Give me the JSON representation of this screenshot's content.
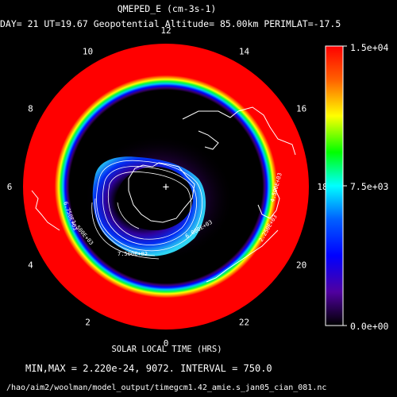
{
  "chart_data": {
    "type": "heatmap",
    "projection": "polar-stereographic",
    "title": "QMEPED_E (cm-3s-1)",
    "subtitle": "DAY= 21 UT=19.67 Geopotential Altitude= 85.00km PERIMLAT=-17.5",
    "xlabel": "SOLAR LOCAL TIME (HRS)",
    "local_time_ticks": [
      {
        "label": "0",
        "lt": 0
      },
      {
        "label": "2",
        "lt": 2
      },
      {
        "label": "4",
        "lt": 4
      },
      {
        "label": "6",
        "lt": 6
      },
      {
        "label": "8",
        "lt": 8
      },
      {
        "label": "10",
        "lt": 10
      },
      {
        "label": "12",
        "lt": 12
      },
      {
        "label": "14",
        "lt": 14
      },
      {
        "label": "16",
        "lt": 16
      },
      {
        "label": "18",
        "lt": 18
      },
      {
        "label": "20",
        "lt": 20
      },
      {
        "label": "22",
        "lt": 22
      }
    ],
    "colorbar": {
      "min": 0.0,
      "max": 15000,
      "tick_labels": [
        "1.5e+04",
        "7.5e+03",
        "0.0e+00"
      ],
      "colors": [
        "#ff0000",
        "#ff8000",
        "#ffff00",
        "#00ff00",
        "#00ffff",
        "#0080ff",
        "#0000ff",
        "#400080",
        "#000000"
      ]
    },
    "min_max_line": "MIN,MAX =  2.220e-24,     9072. INTERVAL =      750.0",
    "minmax": {
      "min": 2.22e-24,
      "max": 9072,
      "interval": 750.0
    },
    "contour_labels": [
      "7.500E+02",
      "1.500E+03",
      "2.250E+03",
      "4.500E+03",
      "6.000E+03",
      "6.750E+03"
    ]
  },
  "footer": {
    "filepath": "/hao/aim2/woolman/model_output/timegcm1.42_amie.s_jan05_cian_081.nc"
  }
}
